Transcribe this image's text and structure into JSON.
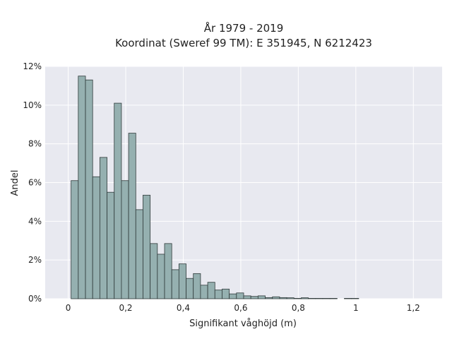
{
  "chart_data": {
    "type": "bar",
    "title_line1": "År 1979 - 2019",
    "title_line2": "Koordinat (Sweref 99 TM): E 351945, N 6212423",
    "xlabel": "Signifikant våghöjd (m)",
    "ylabel": "Andel",
    "xlim": [
      -0.08,
      1.3
    ],
    "ylim": [
      0,
      12
    ],
    "x_ticks": [
      0,
      0.2,
      0.4,
      0.6,
      0.8,
      1.0,
      1.2
    ],
    "x_tick_labels": [
      "0",
      "0,2",
      "0,4",
      "0,6",
      "0,8",
      "1",
      "1,2"
    ],
    "y_ticks": [
      0,
      2,
      4,
      6,
      8,
      10,
      12
    ],
    "y_tick_labels": [
      "0%",
      "2%",
      "4%",
      "6%",
      "8%",
      "10%",
      "12%"
    ],
    "bin_width": 0.025,
    "bin_starts": [
      0.01,
      0.035,
      0.06,
      0.085,
      0.11,
      0.135,
      0.16,
      0.185,
      0.21,
      0.235,
      0.26,
      0.285,
      0.31,
      0.335,
      0.36,
      0.385,
      0.41,
      0.435,
      0.46,
      0.485,
      0.51,
      0.535,
      0.56,
      0.585,
      0.61,
      0.635,
      0.66,
      0.685,
      0.71,
      0.735,
      0.76,
      0.785,
      0.81,
      0.835,
      0.86,
      0.885,
      0.91,
      0.935,
      0.96,
      0.985
    ],
    "values": [
      6.1,
      11.5,
      11.3,
      6.3,
      7.3,
      5.5,
      10.1,
      6.1,
      8.55,
      4.6,
      5.35,
      2.85,
      2.3,
      2.85,
      1.5,
      1.8,
      1.05,
      1.3,
      0.7,
      0.85,
      0.45,
      0.5,
      0.25,
      0.3,
      0.15,
      0.12,
      0.15,
      0.06,
      0.1,
      0.06,
      0.05,
      0.02,
      0.05,
      0.02,
      0.02,
      0.02,
      0.02,
      0.0,
      0.02,
      0.02
    ],
    "bar_fill": "#95b0b0",
    "bar_stroke": "#2f3a3a",
    "plot_background": "#e8e9f0",
    "grid_color": "#ffffff",
    "grid": true
  }
}
